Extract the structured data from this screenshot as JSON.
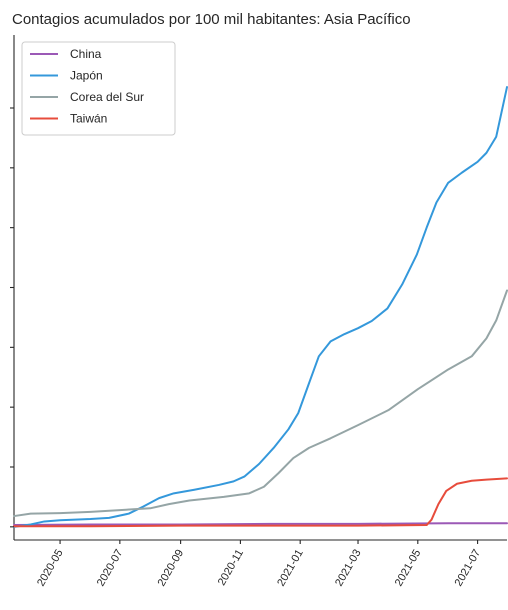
{
  "chart_data": {
    "type": "line",
    "title": "Contagios acumulados por 100 mil habitantes: Asia Pacífico",
    "xlabel": "",
    "ylabel": "",
    "x_ticks": [
      "2020-05",
      "2020-07",
      "2020-09",
      "2020-11",
      "2021-01",
      "2021-03",
      "2021-05",
      "2021-07"
    ],
    "x_domain": [
      "2020-03-15",
      "2021-07-31"
    ],
    "y_range": [
      -0.22,
      8.22
    ],
    "grid": false,
    "legend_position": "top-left",
    "series": [
      {
        "name": "China",
        "color": "#9b59b6",
        "points": [
          [
            "2020-03-15",
            0.03
          ],
          [
            "2020-06-01",
            0.04
          ],
          [
            "2020-09-01",
            0.04
          ],
          [
            "2020-12-01",
            0.05
          ],
          [
            "2021-03-01",
            0.05
          ],
          [
            "2021-06-01",
            0.06
          ],
          [
            "2021-07-31",
            0.06
          ]
        ]
      },
      {
        "name": "Japón",
        "color": "#3498db",
        "points": [
          [
            "2020-03-15",
            0.0
          ],
          [
            "2020-04-01",
            0.04
          ],
          [
            "2020-04-15",
            0.09
          ],
          [
            "2020-05-01",
            0.11
          ],
          [
            "2020-06-01",
            0.13
          ],
          [
            "2020-06-20",
            0.15
          ],
          [
            "2020-07-10",
            0.22
          ],
          [
            "2020-07-25",
            0.34
          ],
          [
            "2020-08-10",
            0.48
          ],
          [
            "2020-08-25",
            0.56
          ],
          [
            "2020-09-15",
            0.62
          ],
          [
            "2020-10-10",
            0.7
          ],
          [
            "2020-10-25",
            0.76
          ],
          [
            "2020-11-05",
            0.84
          ],
          [
            "2020-11-20",
            1.05
          ],
          [
            "2020-12-05",
            1.32
          ],
          [
            "2020-12-20",
            1.63
          ],
          [
            "2020-12-30",
            1.9
          ],
          [
            "2021-01-10",
            2.4
          ],
          [
            "2021-01-20",
            2.85
          ],
          [
            "2021-02-01",
            3.1
          ],
          [
            "2021-02-15",
            3.22
          ],
          [
            "2021-03-01",
            3.32
          ],
          [
            "2021-03-15",
            3.44
          ],
          [
            "2021-03-31",
            3.65
          ],
          [
            "2021-04-15",
            4.05
          ],
          [
            "2021-04-30",
            4.55
          ],
          [
            "2021-05-10",
            5.0
          ],
          [
            "2021-05-20",
            5.42
          ],
          [
            "2021-06-01",
            5.75
          ],
          [
            "2021-06-15",
            5.92
          ],
          [
            "2021-07-01",
            6.1
          ],
          [
            "2021-07-10",
            6.25
          ],
          [
            "2021-07-20",
            6.52
          ],
          [
            "2021-07-31",
            7.35
          ]
        ]
      },
      {
        "name": "Corea del Sur",
        "color": "#95a5a6",
        "points": [
          [
            "2020-03-15",
            0.18
          ],
          [
            "2020-04-01",
            0.22
          ],
          [
            "2020-05-01",
            0.23
          ],
          [
            "2020-06-01",
            0.25
          ],
          [
            "2020-07-01",
            0.28
          ],
          [
            "2020-08-01",
            0.31
          ],
          [
            "2020-08-20",
            0.38
          ],
          [
            "2020-09-10",
            0.44
          ],
          [
            "2020-10-15",
            0.5
          ],
          [
            "2020-11-10",
            0.56
          ],
          [
            "2020-11-25",
            0.67
          ],
          [
            "2020-12-10",
            0.9
          ],
          [
            "2020-12-25",
            1.15
          ],
          [
            "2021-01-10",
            1.32
          ],
          [
            "2021-02-01",
            1.48
          ],
          [
            "2021-03-01",
            1.7
          ],
          [
            "2021-04-01",
            1.95
          ],
          [
            "2021-05-01",
            2.3
          ],
          [
            "2021-06-01",
            2.63
          ],
          [
            "2021-06-25",
            2.85
          ],
          [
            "2021-07-10",
            3.15
          ],
          [
            "2021-07-20",
            3.45
          ],
          [
            "2021-07-31",
            3.95
          ]
        ]
      },
      {
        "name": "Taiwán",
        "color": "#e74c3c",
        "points": [
          [
            "2020-03-15",
            0.01
          ],
          [
            "2020-06-01",
            0.01
          ],
          [
            "2020-09-01",
            0.02
          ],
          [
            "2020-12-01",
            0.02
          ],
          [
            "2021-03-01",
            0.02
          ],
          [
            "2021-05-10",
            0.03
          ],
          [
            "2021-05-15",
            0.12
          ],
          [
            "2021-05-22",
            0.38
          ],
          [
            "2021-05-30",
            0.6
          ],
          [
            "2021-06-10",
            0.72
          ],
          [
            "2021-06-25",
            0.77
          ],
          [
            "2021-07-10",
            0.79
          ],
          [
            "2021-07-31",
            0.81
          ]
        ]
      }
    ]
  }
}
